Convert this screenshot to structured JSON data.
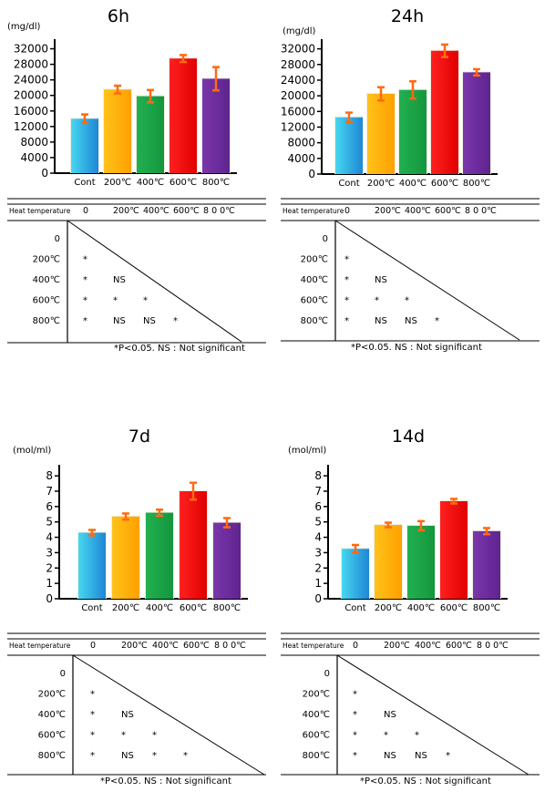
{
  "footnote": "*P<0.05.  NS : Not significant",
  "heat_label": "Heat temperature",
  "matrix_rows": [
    "0",
    "200℃",
    "400℃",
    "600℃",
    "800℃"
  ],
  "matrix_header": [
    "0",
    "200℃",
    "400℃",
    "600℃",
    "8 0 0℃"
  ],
  "matrix_cells": [
    [],
    [
      "*"
    ],
    [
      "*",
      "NS"
    ],
    [
      "*",
      "*",
      "*"
    ],
    [
      "*",
      "NS",
      "NS",
      "*"
    ]
  ],
  "bar_colors": [
    "#2aa8e0",
    "#ffb300",
    "#1aa84a",
    "#ff1010",
    "#7030a0"
  ],
  "error_color": "#ff6a10",
  "chart_data": [
    {
      "type": "bar",
      "title": "6h",
      "unit": "(mg/dl)",
      "categories": [
        "Cont",
        "200℃",
        "400℃",
        "600℃",
        "800℃"
      ],
      "values": [
        14000,
        21500,
        19800,
        29500,
        24300
      ],
      "errors": [
        1100,
        1000,
        1600,
        900,
        3000
      ],
      "yticks": [
        0,
        4000,
        8000,
        12000,
        16000,
        20000,
        24000,
        28000,
        32000
      ],
      "ylim": [
        0,
        34000
      ],
      "matrix_cells": [
        [],
        [
          "*"
        ],
        [
          "*",
          "NS"
        ],
        [
          "*",
          "*",
          "*"
        ],
        [
          "*",
          "NS",
          "NS",
          "*"
        ]
      ]
    },
    {
      "type": "bar",
      "title": "24h",
      "unit": "(mg/dl)",
      "categories": [
        "Cont",
        "200℃",
        "400℃",
        "600℃",
        "800℃"
      ],
      "values": [
        14500,
        20500,
        21500,
        31500,
        26000
      ],
      "errors": [
        1200,
        1700,
        2200,
        1600,
        800
      ],
      "yticks": [
        0,
        4000,
        8000,
        12000,
        16000,
        20000,
        24000,
        28000,
        32000
      ],
      "ylim": [
        0,
        34000
      ],
      "matrix_cells": [
        [],
        [
          "*"
        ],
        [
          "*",
          "NS"
        ],
        [
          "*",
          "*",
          "*"
        ],
        [
          "*",
          "NS",
          "NS",
          "*"
        ]
      ]
    },
    {
      "type": "bar",
      "title": "7d",
      "unit": "(mol/ml)",
      "categories": [
        "Cont",
        "200℃",
        "400℃",
        "600℃",
        "800℃"
      ],
      "values": [
        4.3,
        5.35,
        5.6,
        7.0,
        4.95
      ],
      "errors": [
        0.18,
        0.2,
        0.2,
        0.55,
        0.3
      ],
      "yticks": [
        0,
        1,
        2,
        3,
        4,
        5,
        6,
        7,
        8
      ],
      "ylim": [
        0,
        8.6
      ],
      "matrix_cells": [
        [],
        [
          "*"
        ],
        [
          "*",
          "NS"
        ],
        [
          "*",
          "*",
          "*"
        ],
        [
          "*",
          "NS",
          "*",
          "*"
        ]
      ]
    },
    {
      "type": "bar",
      "title": "14d",
      "unit": "(mol/ml)",
      "categories": [
        "Cont",
        "200℃",
        "400℃",
        "600℃",
        "800℃"
      ],
      "values": [
        3.25,
        4.8,
        4.75,
        6.35,
        4.4
      ],
      "errors": [
        0.25,
        0.15,
        0.3,
        0.15,
        0.2
      ],
      "yticks": [
        0,
        1,
        2,
        3,
        4,
        5,
        6,
        7,
        8
      ],
      "ylim": [
        0,
        8.6
      ],
      "matrix_cells": [
        [],
        [
          "*"
        ],
        [
          "*",
          "NS"
        ],
        [
          "*",
          "*",
          "*"
        ],
        [
          "*",
          "NS",
          "NS",
          "*"
        ]
      ]
    }
  ]
}
